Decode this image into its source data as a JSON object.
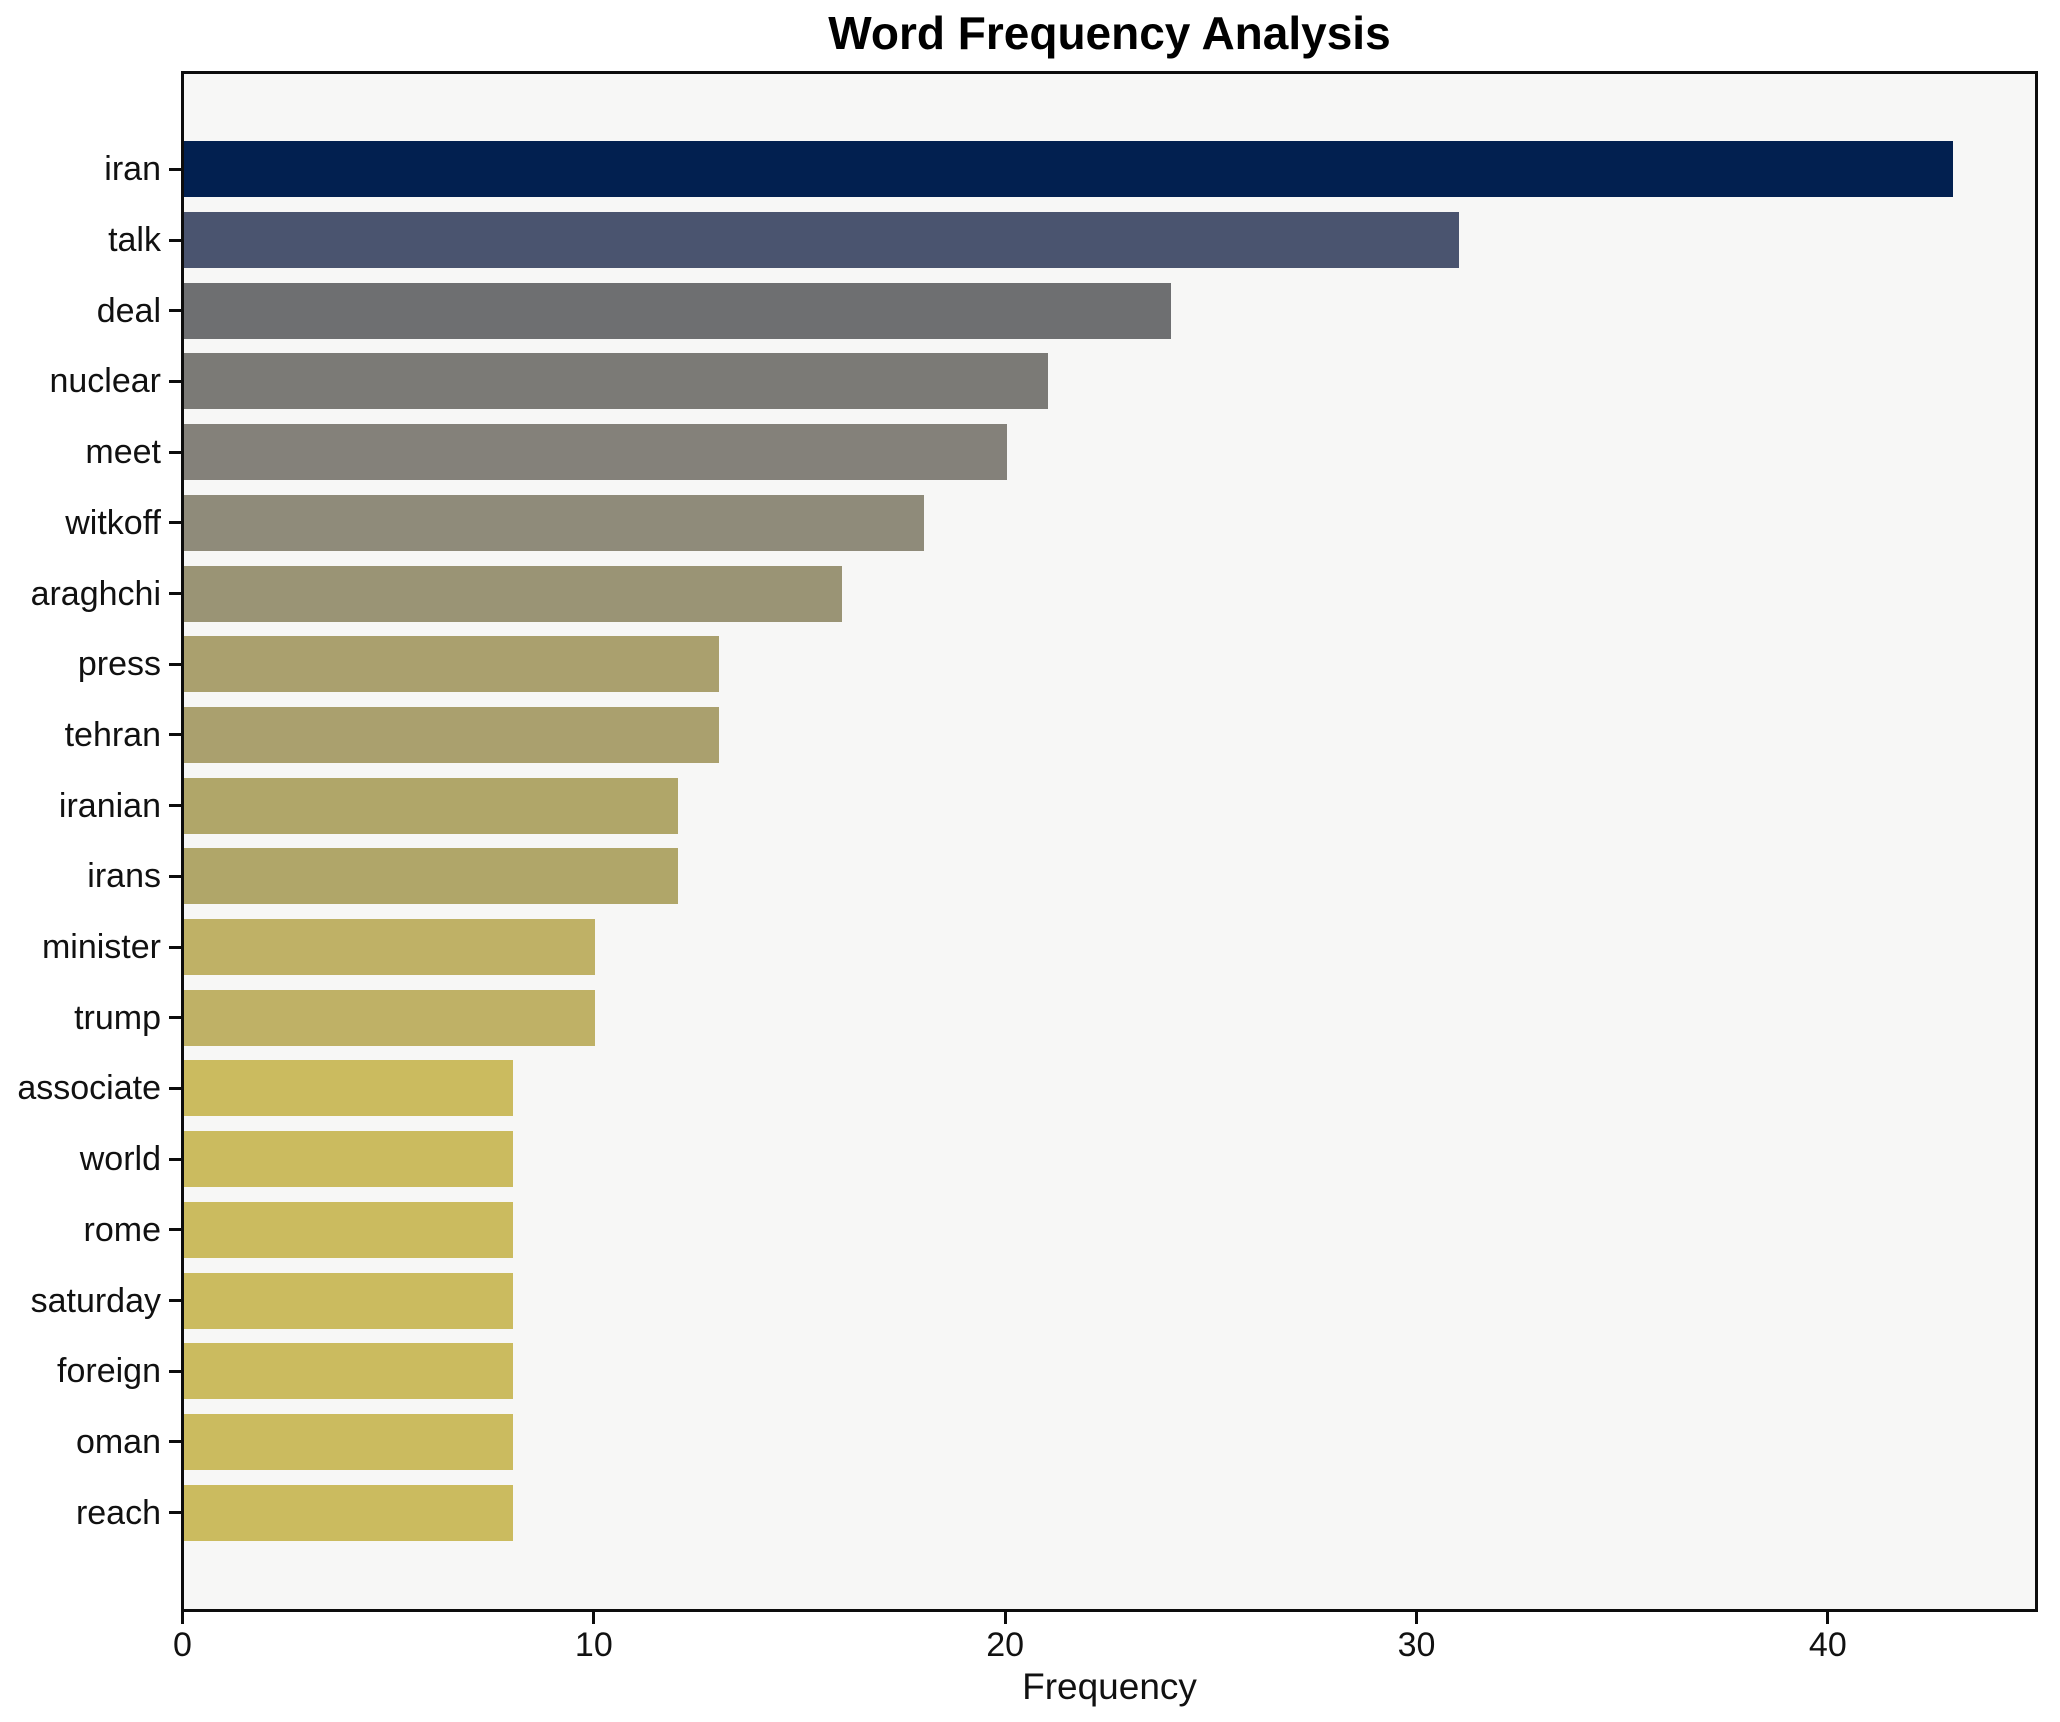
{
  "title": "Word Frequency Analysis",
  "xlabel": "Frequency",
  "chart_data": {
    "type": "bar",
    "orientation": "horizontal",
    "title": "Word Frequency Analysis",
    "xlabel": "Frequency",
    "ylabel": "",
    "grid": false,
    "legend": "none",
    "colormap": "cividis-reversed-by-value",
    "plot_background": "#f7f7f6",
    "figure_background": "#ffffff",
    "spine_color": "#0d0d0d",
    "xlim": [
      0,
      45
    ],
    "x_ticks": [
      0,
      10,
      20,
      30,
      40
    ],
    "categories": [
      "iran",
      "talk",
      "deal",
      "nuclear",
      "meet",
      "witkoff",
      "araghchi",
      "press",
      "tehran",
      "iranian",
      "irans",
      "minister",
      "trump",
      "associate",
      "world",
      "rome",
      "saturday",
      "foreign",
      "oman",
      "reach"
    ],
    "values": [
      43,
      31,
      24,
      21,
      20,
      18,
      16,
      13,
      13,
      12,
      12,
      10,
      10,
      8,
      8,
      8,
      8,
      8,
      8,
      8
    ],
    "bar_colors": [
      "#022050",
      "#4a546f",
      "#6e6f71",
      "#7b7a76",
      "#84817a",
      "#8f8b7a",
      "#9a9475",
      "#aaa06e",
      "#aaa06e",
      "#b0a669",
      "#b0a669",
      "#bfb166",
      "#bfb166",
      "#cbbb5f",
      "#cbbb5f",
      "#cbbb5f",
      "#cbbb5f",
      "#cbbb5f",
      "#cbbb5f",
      "#cbbb5f"
    ]
  }
}
